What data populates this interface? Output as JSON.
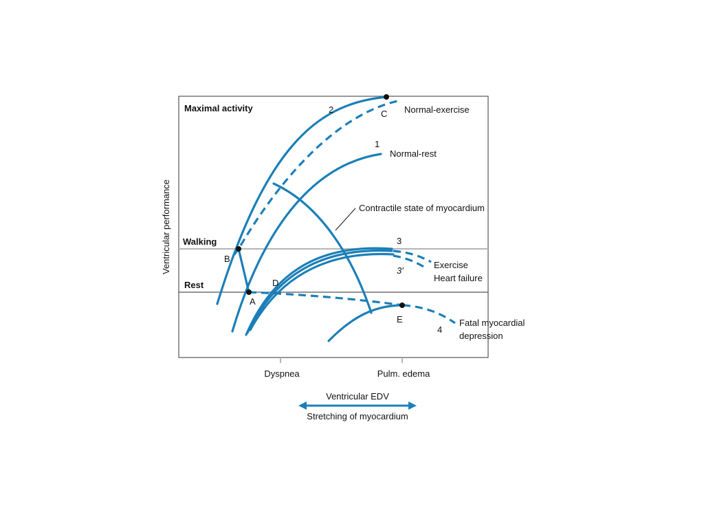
{
  "colors": {
    "curve": "#1b7fb8",
    "axis": "#555555",
    "refline": "#b5b5b5",
    "text": "#111111",
    "point": "#111111"
  },
  "axes": {
    "ylabel": "Ventricular performance",
    "xlabel": "Ventricular EDV",
    "xlabel_sub": "Stretching of myocardium"
  },
  "levels": {
    "maximal": "Maximal activity",
    "walking": "Walking",
    "rest": "Rest"
  },
  "x_ticks": {
    "dyspnea": "Dyspnea",
    "pulm_edema": "Pulm. edema"
  },
  "curves": {
    "c1": {
      "num": "1",
      "label": "Normal-rest"
    },
    "c2": {
      "num": "2",
      "label": "Normal-exercise"
    },
    "c3": {
      "num": "3",
      "num_prime": "3'",
      "label1": "Exercise",
      "label2": "Heart failure"
    },
    "c4": {
      "num": "4",
      "label1": "Fatal myocardial",
      "label2": "depression"
    }
  },
  "points": {
    "A": "A",
    "B": "B",
    "C": "C",
    "D": "D",
    "E": "E"
  },
  "annotation": "Contractile state of myocardium"
}
